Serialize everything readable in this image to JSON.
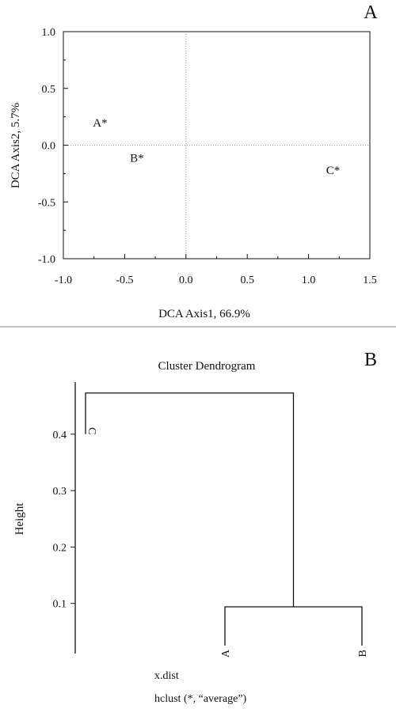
{
  "colors": {
    "ink": "#111111",
    "guide": "#9a9a9a",
    "divider": "#8a8a8a"
  },
  "chart_data": [
    {
      "type": "scatter",
      "panel_label": "A",
      "title": "",
      "xlabel": "DCA Axis1, 66.9%",
      "ylabel": "DCA Axis2, 5.7%",
      "xlim": [
        -1.0,
        1.5
      ],
      "ylim": [
        -1.0,
        1.0
      ],
      "xticks": [
        -1.0,
        -0.5,
        0.0,
        0.5,
        1.0,
        1.5
      ],
      "xtick_labels": [
        "-1.0",
        "-0.5",
        "0.0",
        "0.5",
        "1.0",
        "1.5"
      ],
      "yticks": [
        -1.0,
        -0.5,
        0.0,
        0.5,
        1.0
      ],
      "ytick_labels": [
        "-1.0",
        "-0.5",
        "0.0",
        "0.5",
        "1.0"
      ],
      "reference_lines": {
        "x": 0,
        "y": 0,
        "style": "dotted"
      },
      "grid": false,
      "points": [
        {
          "label": "A*",
          "x": -0.7,
          "y": 0.2
        },
        {
          "label": "B*",
          "x": -0.4,
          "y": -0.11
        },
        {
          "label": "C*",
          "x": 1.2,
          "y": -0.22
        }
      ]
    },
    {
      "type": "dendrogram",
      "panel_label": "B",
      "title": "Cluster Dendrogram",
      "xlabel": "x.dist",
      "sublabel": "hclust (*, “average”)",
      "ylabel": "Height",
      "ylim": [
        0.0,
        0.48
      ],
      "yticks": [
        0.1,
        0.2,
        0.3,
        0.4
      ],
      "ytick_labels": [
        "0.1",
        "0.2",
        "0.3",
        "0.4"
      ],
      "leaves": [
        {
          "label": "C",
          "height": 0.4
        },
        {
          "label": "A",
          "height": 0.0
        },
        {
          "label": "B",
          "height": 0.0
        }
      ],
      "merges": [
        {
          "members": [
            "A",
            "B"
          ],
          "height": 0.094
        },
        {
          "members": [
            "C",
            "A+B"
          ],
          "height": 0.473
        }
      ]
    }
  ]
}
